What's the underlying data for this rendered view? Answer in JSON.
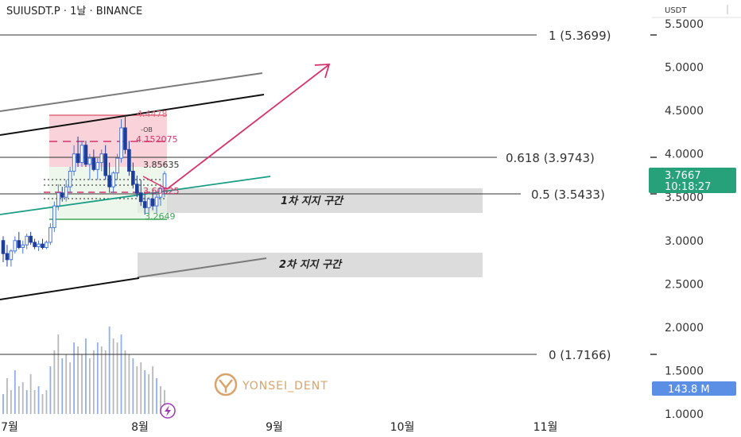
{
  "header": {
    "symbol": "SUIUSDT.P",
    "timeframe": "1날",
    "exchange": "BINANCE",
    "title": "SUIUSDT.P · 1날 · BINANCE"
  },
  "price_axis": {
    "currency": "USDT",
    "ticks": [
      "5.5000",
      "5.0000",
      "4.5000",
      "4.0000",
      "3.5000",
      "3.0000",
      "2.5000",
      "2.0000",
      "1.5000",
      "1.0000"
    ]
  },
  "time_axis": {
    "ticks": [
      "7월",
      "8월",
      "9월",
      "10월",
      "11월"
    ]
  },
  "fibonacci": [
    {
      "label": "1 (5.3699)",
      "level": 5.3699
    },
    {
      "label": "0.618 (3.9743)",
      "level": 3.9743
    },
    {
      "label": "0.5 (3.5433)",
      "level": 3.5433
    },
    {
      "label": "0 (1.7166)",
      "level": 1.7166
    }
  ],
  "zones": [
    {
      "label": "1차 지지 구간",
      "low": 3.3,
      "high": 3.6
    },
    {
      "label": "2차 지지 구간",
      "low": 2.6,
      "high": 2.88
    }
  ],
  "order_block": {
    "label": "-OB",
    "top": 4.4478,
    "mid": 4.152075,
    "top_text": "4.4478",
    "mid_text": "4.152075"
  },
  "levels": [
    {
      "text": "3.85635",
      "value": 3.85635
    },
    {
      "text": "3.60625",
      "value": 3.60625
    },
    {
      "text": "3.2649",
      "value": 3.2649
    }
  ],
  "current_price": {
    "value": "3.7667",
    "countdown": "10:18:27",
    "level": 3.7667
  },
  "volume_label": "143.8 M",
  "watermark": "YONSEI_DENT",
  "colors": {
    "up": "#4a78d8",
    "down": "#1f3e9c",
    "fib": "#333333",
    "current": "#26a17a",
    "volume_badge": "#5b8fe6",
    "arrow": "#d6336c",
    "green_line": "#1a9c85",
    "ob_fill": "#f7c8cf",
    "ob_line": "#e06a7d",
    "zone_fill": "#d6d6d6",
    "watermark": "#d9a36b"
  },
  "chart_data": {
    "type": "candlestick",
    "title": "SUIUSDT.P · 1날 · BINANCE",
    "ylim": [
      1.0,
      5.6
    ],
    "x_axis_ticks": [
      "7월",
      "8월",
      "9월",
      "10월",
      "11월"
    ],
    "last_close": 3.7667
  }
}
